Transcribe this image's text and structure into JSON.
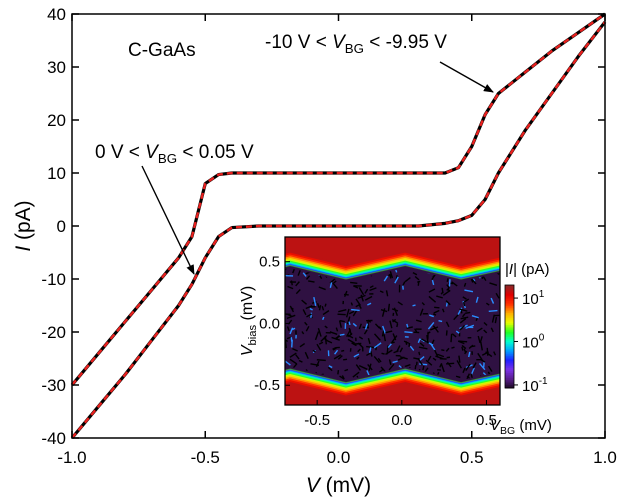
{
  "chart_data": [
    {
      "type": "line",
      "x": [
        -1.0,
        -0.9,
        -0.8,
        -0.7,
        -0.6,
        -0.55,
        -0.5,
        -0.45,
        -0.4,
        -0.3,
        0.0,
        0.3,
        0.4,
        0.45,
        0.5,
        0.55,
        0.6,
        0.7,
        0.8,
        0.9,
        1.0
      ],
      "series": [
        {
          "color": "#000000",
          "style": "solid",
          "values": [
            -30,
            -24,
            -18,
            -12,
            -6,
            -2,
            8,
            9.7,
            10,
            10,
            10,
            10,
            10,
            11,
            15,
            21,
            25,
            29,
            33,
            36.5,
            40
          ]
        },
        {
          "color": "#000000",
          "style": "solid",
          "values": [
            -40,
            -34,
            -28,
            -21.5,
            -15,
            -11,
            -6,
            -2,
            -0.3,
            0,
            0,
            0,
            0.5,
            1,
            2,
            5,
            10,
            18,
            25,
            32,
            38.5
          ]
        },
        {
          "color": "#e8201e",
          "style": "dashed",
          "values": [
            -30,
            -24,
            -18,
            -12,
            -6,
            -2,
            8,
            9.7,
            10,
            10,
            10,
            10,
            10,
            11,
            15,
            21,
            25,
            29,
            33,
            36.5,
            40
          ]
        },
        {
          "color": "#e8201e",
          "style": "dashed",
          "values": [
            -40,
            -34,
            -28,
            -21.5,
            -15,
            -11,
            -6,
            -2,
            -0.3,
            0,
            0,
            0,
            0.5,
            1,
            2,
            5,
            10,
            18,
            25,
            32,
            38.5
          ]
        }
      ],
      "xlim": [
        -1.0,
        1.0
      ],
      "ylim": [
        -40,
        40
      ],
      "xticks": [
        {
          "value": -1.0,
          "label": "-1.0"
        },
        {
          "value": -0.5,
          "label": "-0.5"
        },
        {
          "value": 0,
          "label": "0.0"
        },
        {
          "value": 0.5,
          "label": "0.5"
        },
        {
          "value": 1.0,
          "label": "1.0"
        }
      ],
      "yticks": [
        -40,
        -30,
        -20,
        -10,
        0,
        10,
        20,
        30,
        40
      ],
      "x_label": [
        {
          "text": "V",
          "style": "italic"
        },
        {
          "text": " (mV)"
        }
      ],
      "y_label": [
        {
          "text": "I",
          "style": "italic"
        },
        {
          "text": " (pA)"
        }
      ],
      "annotations": [
        [
          {
            "text": "C-GaAs"
          }
        ],
        [
          {
            "text": "-10 V < "
          },
          {
            "text": "V",
            "style": "italic"
          },
          {
            "text": "BG",
            "style": "sub"
          },
          {
            "text": " < -9.95 V"
          }
        ],
        [
          {
            "text": "0 V < "
          },
          {
            "text": "V",
            "style": "italic"
          },
          {
            "text": "BG",
            "style": "sub"
          },
          {
            "text": " < 0.05 V"
          }
        ]
      ]
    },
    {
      "type": "heatmap",
      "xlim": [
        -0.69,
        0.58
      ],
      "ylim": [
        -0.66,
        0.7
      ],
      "xticks": [
        {
          "value": -0.5,
          "label": "-0.5"
        },
        {
          "value": 0,
          "label": "0.0"
        },
        {
          "value": 0.5,
          "label": "0.5"
        }
      ],
      "yticks": [
        {
          "value": -0.5,
          "label": "-0.5"
        },
        {
          "value": 0,
          "label": "0.0"
        },
        {
          "value": 0.5,
          "label": "0.5"
        }
      ],
      "x_label": [
        {
          "text": "V",
          "style": "italic"
        },
        {
          "text": "BG",
          "style": "sub"
        },
        {
          "text": " (mV)"
        }
      ],
      "y_label": [
        {
          "text": "V",
          "style": "italic"
        },
        {
          "text": "bias",
          "style": "sub"
        },
        {
          "text": " (mV)"
        }
      ],
      "gap_x": [
        -0.69,
        -0.66,
        -0.33,
        0.02,
        0.35,
        0.58
      ],
      "gap_upper": [
        0.46,
        0.47,
        0.36,
        0.47,
        0.36,
        0.43
      ],
      "gap_lower": [
        -0.38,
        -0.37,
        -0.48,
        -0.37,
        -0.48,
        -0.41
      ],
      "z_inside": 0.1,
      "z_outside": 15,
      "colorbar": {
        "label": [
          {
            "text": "|"
          },
          {
            "text": "I",
            "style": "italic"
          },
          {
            "text": "| (pA)"
          }
        ],
        "scale": "log",
        "lim": [
          0.085,
          20
        ],
        "ticks": [
          {
            "value": 10,
            "label": "10",
            "exponent": "1"
          },
          {
            "value": 1,
            "label": "10",
            "exponent": "0"
          },
          {
            "value": 0.1,
            "label": "10",
            "exponent": "-1"
          }
        ],
        "colormap": [
          "#1a0a1e",
          "#5a1e8c",
          "#7a32e6",
          "#2020ff",
          "#00a0ff",
          "#00ffd0",
          "#20ff20",
          "#e8ff00",
          "#ffb000",
          "#ff3000",
          "#e00000",
          "#8a2a2a"
        ]
      }
    }
  ]
}
